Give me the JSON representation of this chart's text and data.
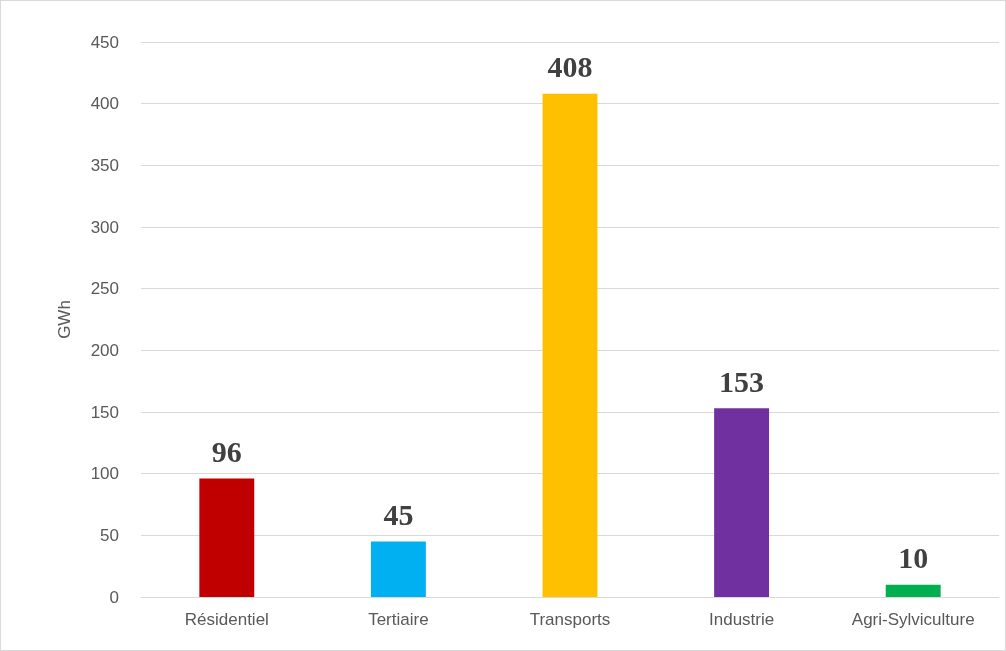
{
  "chart_data": {
    "type": "bar",
    "ylabel": "GWh",
    "categories": [
      "Résidentiel",
      "Tertiaire",
      "Transports",
      "Industrie",
      "Agri-Sylviculture"
    ],
    "values": [
      96,
      45,
      408,
      153,
      10
    ],
    "colors": [
      "#c00000",
      "#00b0f0",
      "#ffc000",
      "#7030a0",
      "#00b050"
    ],
    "ylim": [
      0,
      450
    ],
    "yticks": [
      0,
      50,
      100,
      150,
      200,
      250,
      300,
      350,
      400,
      450
    ],
    "grid": "y",
    "data_labels": true
  }
}
